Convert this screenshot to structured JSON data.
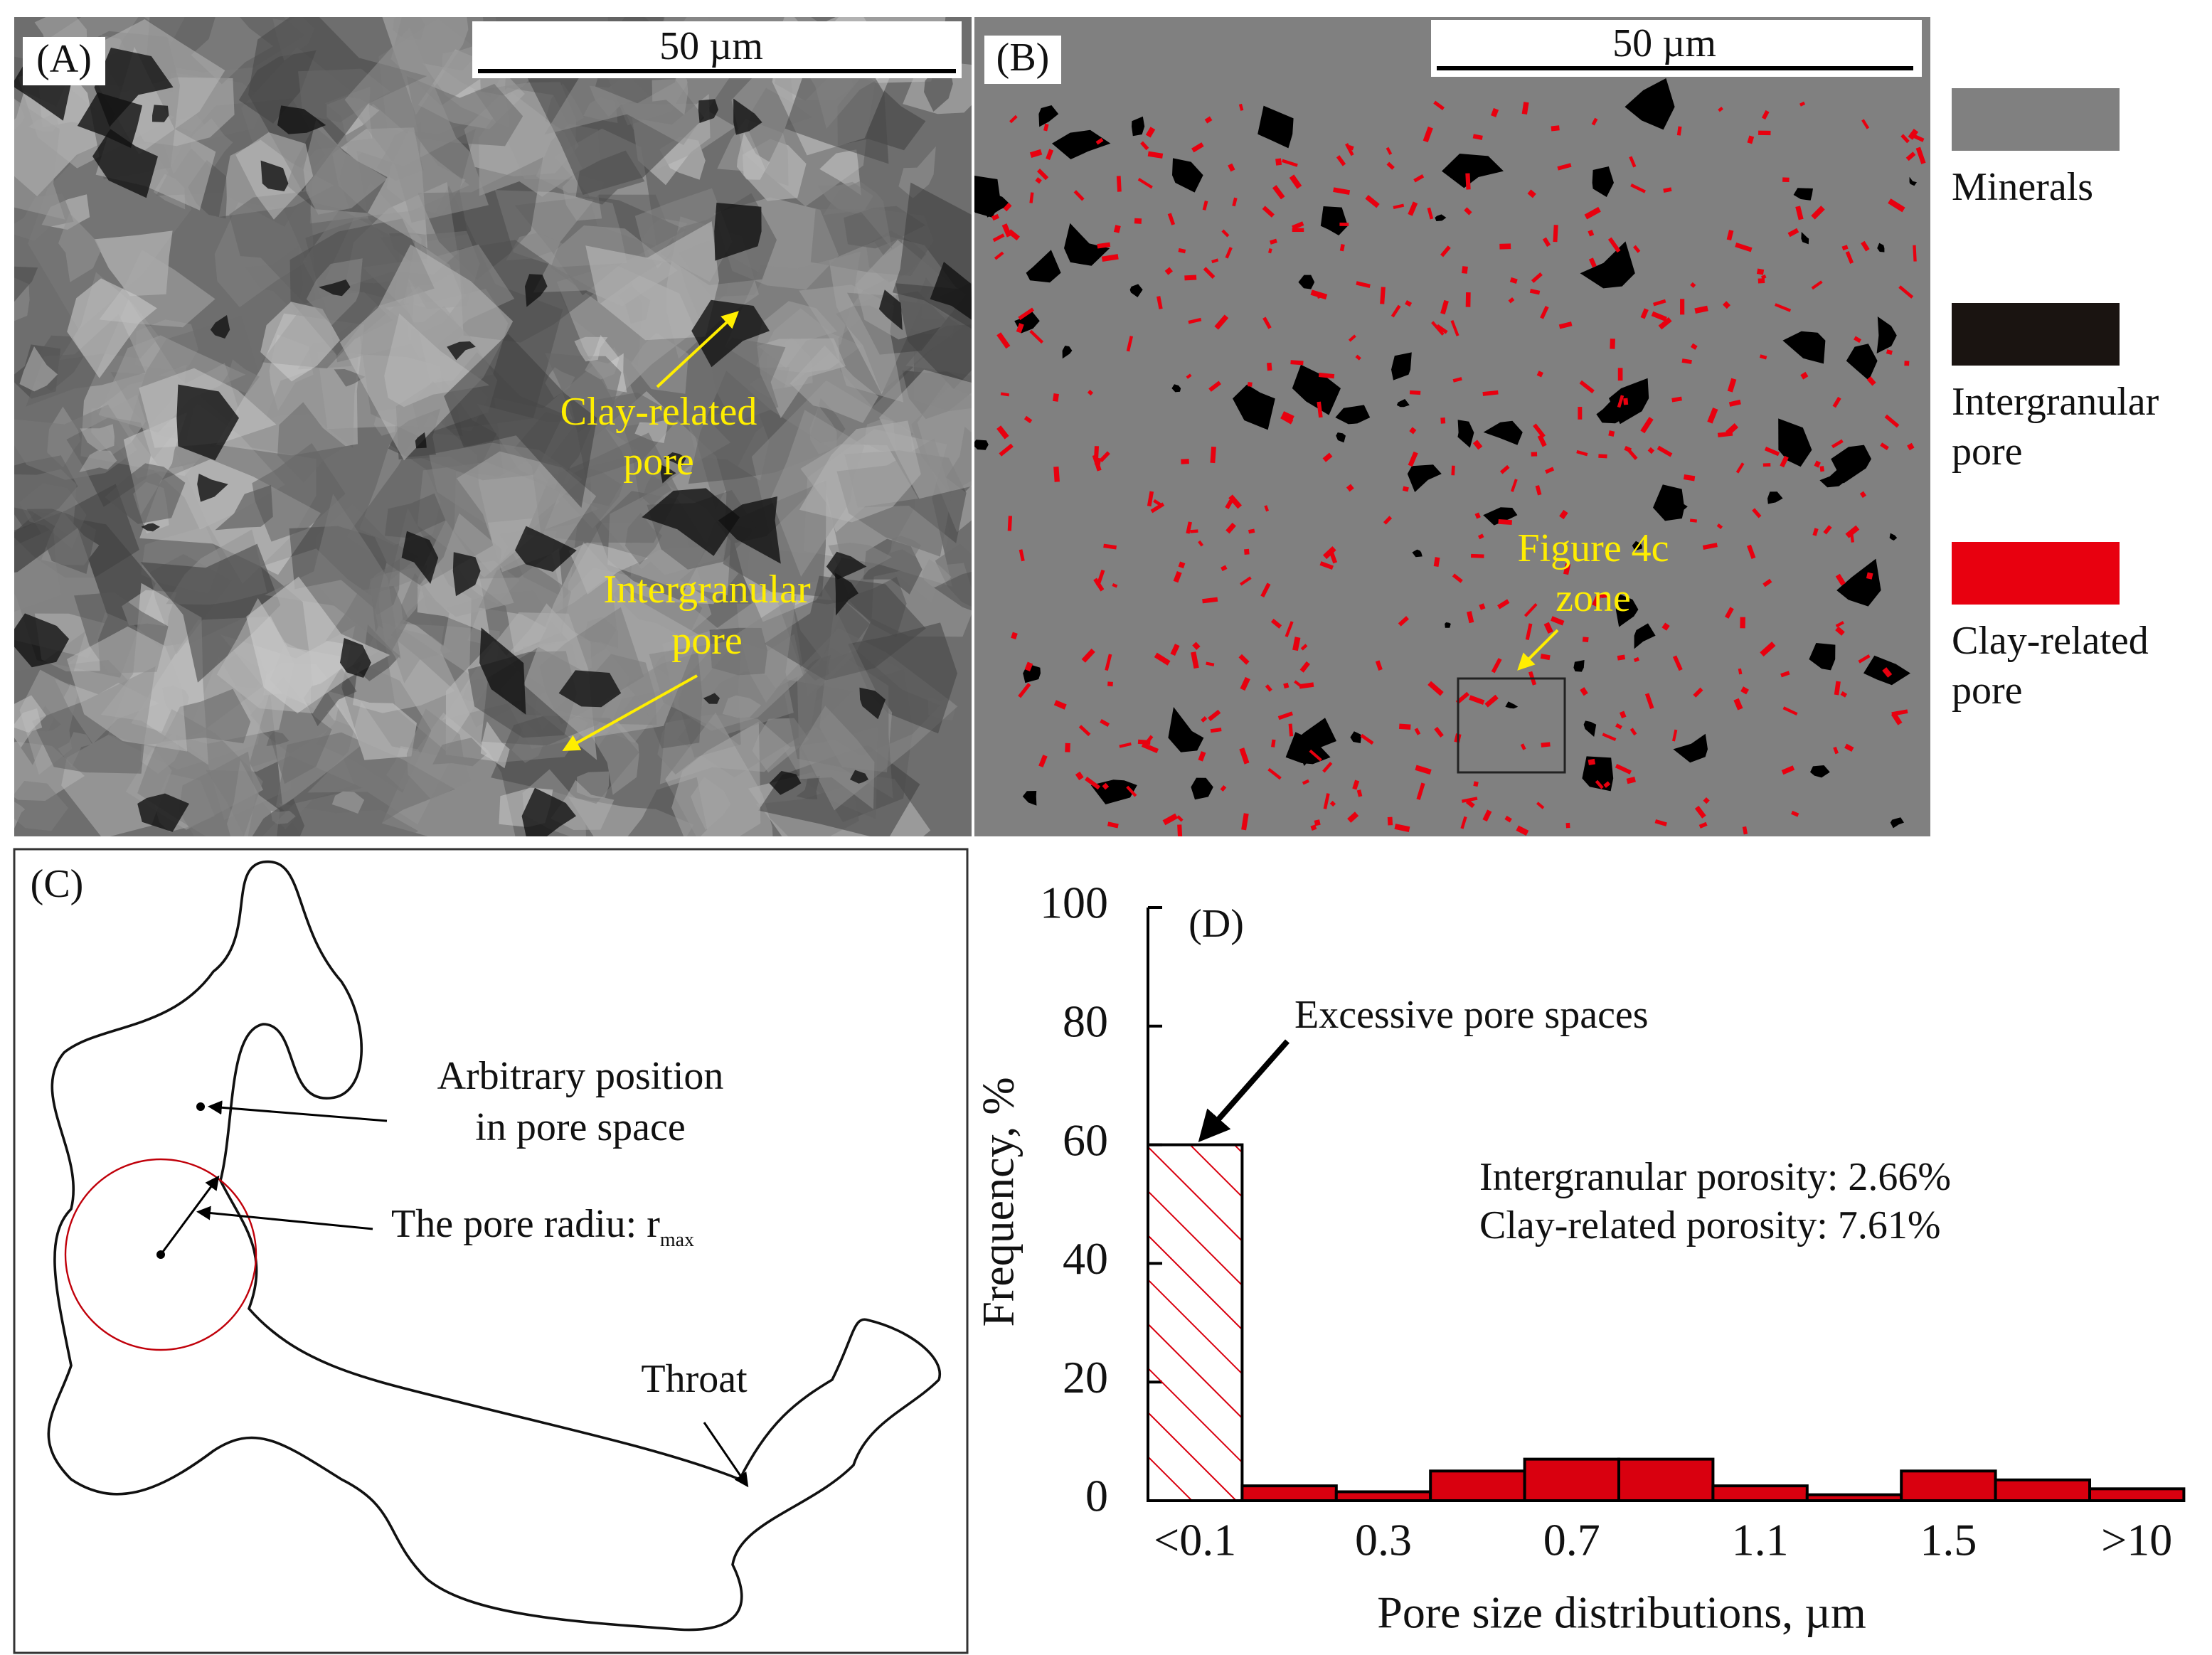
{
  "panel_a": {
    "label": "(A)",
    "scale_bar": "50 µm",
    "annotations": [
      [
        "Clay-related",
        "pore"
      ],
      [
        "Intergranular",
        "pore"
      ]
    ]
  },
  "panel_b": {
    "label": "(B)",
    "scale_bar": "50 µm",
    "annotation": [
      "Figure 4c",
      "zone"
    ],
    "legend": [
      {
        "lines": [
          "Minerals"
        ],
        "color": "#808080"
      },
      {
        "lines": [
          "Intergranular",
          "pore"
        ],
        "color": "#1a1411"
      },
      {
        "lines": [
          "Clay-related",
          "pore"
        ],
        "color": "#e8000f"
      }
    ]
  },
  "panel_c": {
    "label": "(C)",
    "position": [
      "Arbitrary position",
      "in pore space"
    ],
    "radius": "The pore radiu: r",
    "radius_sub": "max",
    "throat": "Throat"
  },
  "chart_data": {
    "type": "bar",
    "panel_label": "(D)",
    "categories": [
      "<0.1",
      null,
      "0.3",
      null,
      "0.7",
      null,
      "1.1",
      null,
      "1.5",
      null,
      ">10"
    ],
    "values": [
      60,
      2.5,
      1.5,
      5,
      7,
      7,
      2.5,
      1,
      5,
      3.5,
      2
    ],
    "color": "#d9000f",
    "bar_styles": [
      "hatched",
      "solid",
      "solid",
      "solid",
      "solid",
      "solid",
      "solid",
      "solid",
      "solid",
      "solid",
      "solid"
    ],
    "ylim": [
      0,
      100
    ],
    "yticks": [
      0,
      20,
      40,
      60,
      80,
      100
    ],
    "ylabel": "Frequency, %",
    "xlabel": "Pore size distributions, µm",
    "annotations": [
      "Excessive pore spaces",
      "Intergranular porosity: 2.66%",
      "Clay-related porosity: 7.61%"
    ]
  }
}
